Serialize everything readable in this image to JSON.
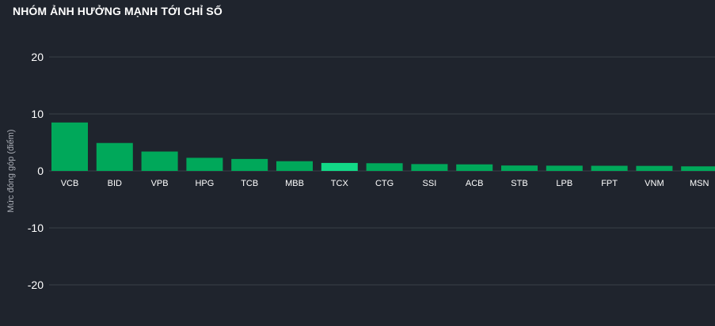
{
  "header": {
    "title": "NHÓM ẢNH HƯỞNG MẠNH TỚI CHỈ SỐ"
  },
  "colors": {
    "background": "#1f242d",
    "bar": "#00a85a",
    "bar_highlight": "#12d987",
    "grid": "#3a3f48"
  },
  "chart_data": {
    "type": "bar",
    "title": "NHÓM ẢNH HƯỞNG MẠNH TỚI CHỈ SỐ",
    "xlabel": "",
    "ylabel": "Mức đóng góp (điểm)",
    "ylim": [
      -25,
      25
    ],
    "yticks": [
      20,
      10,
      0,
      -10,
      -20
    ],
    "grid": true,
    "highlight": "TCX",
    "categories": [
      "VCB",
      "BID",
      "VPB",
      "HPG",
      "TCB",
      "MBB",
      "TCX",
      "CTG",
      "SSI",
      "ACB",
      "STB",
      "LPB",
      "FPT",
      "VNM",
      "MSN"
    ],
    "values": [
      8.5,
      4.9,
      3.4,
      2.3,
      2.1,
      1.7,
      1.4,
      1.35,
      1.2,
      1.15,
      0.95,
      0.92,
      0.9,
      0.88,
      0.8
    ]
  }
}
